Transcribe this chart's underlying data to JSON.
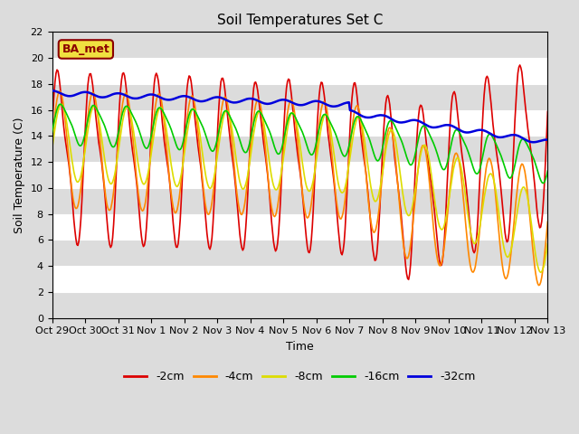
{
  "title": "Soil Temperatures Set C",
  "xlabel": "Time",
  "ylabel": "Soil Temperature (C)",
  "ylim": [
    0,
    22
  ],
  "yticks": [
    0,
    2,
    4,
    6,
    8,
    10,
    12,
    14,
    16,
    18,
    20,
    22
  ],
  "bg_color": "#dcdcdc",
  "line_colors": {
    "-2cm": "#dd0000",
    "-4cm": "#ff8800",
    "-8cm": "#dddd00",
    "-16cm": "#00cc00",
    "-32cm": "#0000dd"
  },
  "x_labels": [
    "Oct 29",
    "Oct 30",
    "Oct 31",
    "Nov 1",
    "Nov 2",
    "Nov 3",
    "Nov 4",
    "Nov 5",
    "Nov 6",
    "Nov 7",
    "Nov 8",
    "Nov 9",
    "Nov 10",
    "Nov 11",
    "Nov 12",
    "Nov 13"
  ],
  "legend_label": "BA_met",
  "n_points": 500
}
